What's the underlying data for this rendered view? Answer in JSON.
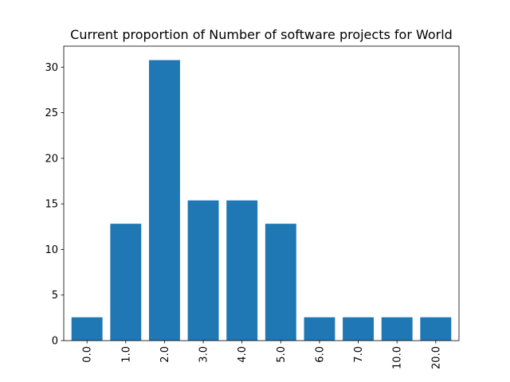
{
  "chart_data": {
    "type": "bar",
    "title": "Current proportion of Number of software projects for World",
    "xlabel": "",
    "ylabel": "",
    "categories": [
      "0.0",
      "1.0",
      "2.0",
      "3.0",
      "4.0",
      "5.0",
      "6.0",
      "7.0",
      "10.0",
      "20.0"
    ],
    "values": [
      2.56,
      12.82,
      30.77,
      15.38,
      15.38,
      12.82,
      2.56,
      2.56,
      2.56,
      2.56
    ],
    "ylim": [
      0,
      32.3
    ],
    "yticks": [
      0,
      5,
      10,
      15,
      20,
      25,
      30
    ],
    "bar_color": "#1f77b4",
    "grid": false,
    "legend": "none"
  }
}
